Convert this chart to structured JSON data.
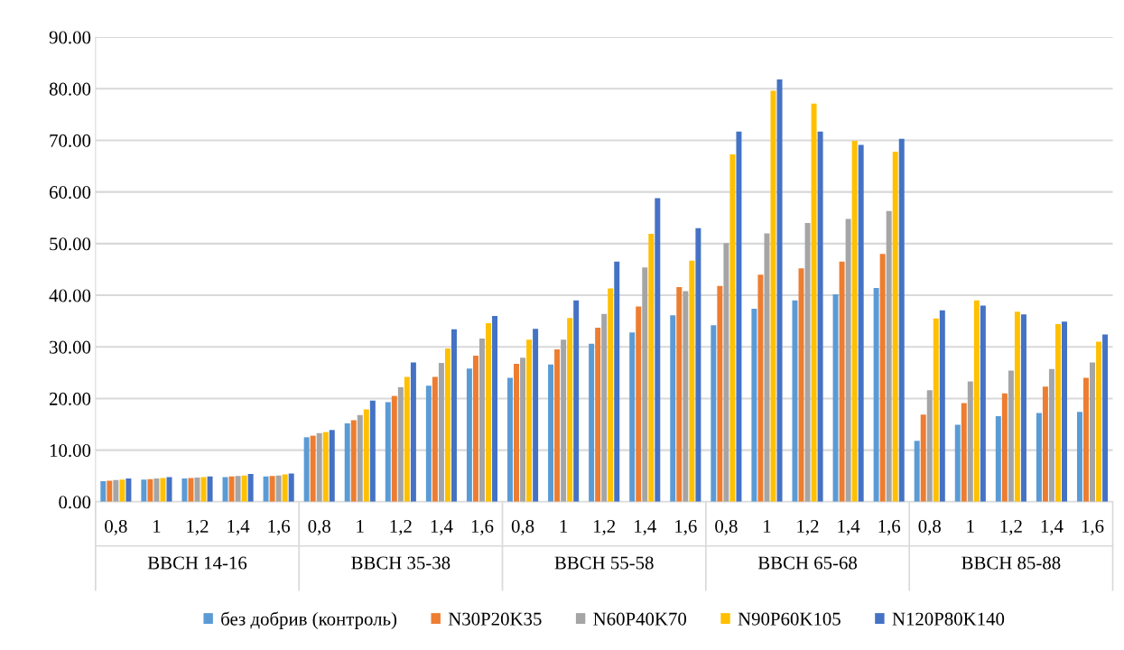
{
  "chart_data": {
    "type": "bar",
    "categories": [
      "0,8",
      "1",
      "1,2",
      "1,4",
      "1,6",
      "0,8",
      "1",
      "1,2",
      "1,4",
      "1,6",
      "0,8",
      "1",
      "1,2",
      "1,4",
      "1,6",
      "0,8",
      "1",
      "1,2",
      "1,4",
      "1,6",
      "0,8",
      "1",
      "1,2",
      "1,4",
      "1,6"
    ],
    "annotations": [
      "BBCH 14-16",
      "BBCH 35-38",
      "BBCH 55-58",
      "BBCH 65-68",
      "BBCH 85-88"
    ],
    "series": [
      {
        "name": "без добрив (контроль)",
        "color": "#5b9bd5",
        "values": [
          4.0,
          4.3,
          4.5,
          4.8,
          4.9,
          12.5,
          15.2,
          19.3,
          22.5,
          25.8,
          24.0,
          26.6,
          30.6,
          32.8,
          36.1,
          34.2,
          37.4,
          39.0,
          40.2,
          41.4,
          11.8,
          14.9,
          16.6,
          17.2,
          17.4
        ]
      },
      {
        "name": "N30P20K35",
        "color": "#ed7d31",
        "values": [
          4.1,
          4.4,
          4.6,
          4.9,
          5.0,
          12.8,
          15.8,
          20.5,
          24.2,
          28.3,
          26.7,
          29.5,
          33.7,
          37.8,
          41.6,
          41.8,
          44.0,
          45.2,
          46.5,
          48.0,
          16.9,
          19.1,
          21.0,
          22.3,
          24.0
        ]
      },
      {
        "name": "N60P40K70",
        "color": "#a5a5a5",
        "values": [
          4.2,
          4.5,
          4.7,
          5.0,
          5.1,
          13.3,
          16.8,
          22.2,
          26.9,
          31.6,
          27.9,
          31.4,
          36.4,
          45.4,
          40.8,
          50.1,
          52.0,
          54.0,
          54.8,
          56.3,
          21.6,
          23.3,
          25.4,
          25.7,
          27.0
        ]
      },
      {
        "name": "N90P60K105",
        "color": "#ffc000",
        "values": [
          4.3,
          4.6,
          4.8,
          5.1,
          5.3,
          13.5,
          17.9,
          24.2,
          29.7,
          34.6,
          31.4,
          35.6,
          41.3,
          51.9,
          46.7,
          67.3,
          79.6,
          77.1,
          69.9,
          67.8,
          35.5,
          39.0,
          36.8,
          34.4,
          31.0
        ]
      },
      {
        "name": "N120P80K140",
        "color": "#4472c4",
        "values": [
          4.5,
          4.8,
          4.9,
          5.4,
          5.5,
          13.9,
          19.6,
          27.0,
          33.4,
          36.0,
          33.5,
          39.0,
          46.5,
          58.8,
          53.0,
          71.7,
          81.8,
          71.7,
          69.1,
          70.3,
          37.1,
          38.0,
          36.3,
          34.9,
          32.4
        ]
      }
    ],
    "ylim": [
      0,
      90
    ],
    "yticks": [
      {
        "value": 0,
        "label": "0.00"
      },
      {
        "value": 10,
        "label": "10.00"
      },
      {
        "value": 20,
        "label": "20.00"
      },
      {
        "value": 30,
        "label": "30.00"
      },
      {
        "value": 40,
        "label": "40.00"
      },
      {
        "value": 50,
        "label": "50.00"
      },
      {
        "value": 60,
        "label": "60.00"
      },
      {
        "value": 70,
        "label": "70.00"
      },
      {
        "value": 80,
        "label": "80.00"
      },
      {
        "value": 90,
        "label": "90.00"
      }
    ],
    "grid": "y",
    "legend": "bottom"
  }
}
